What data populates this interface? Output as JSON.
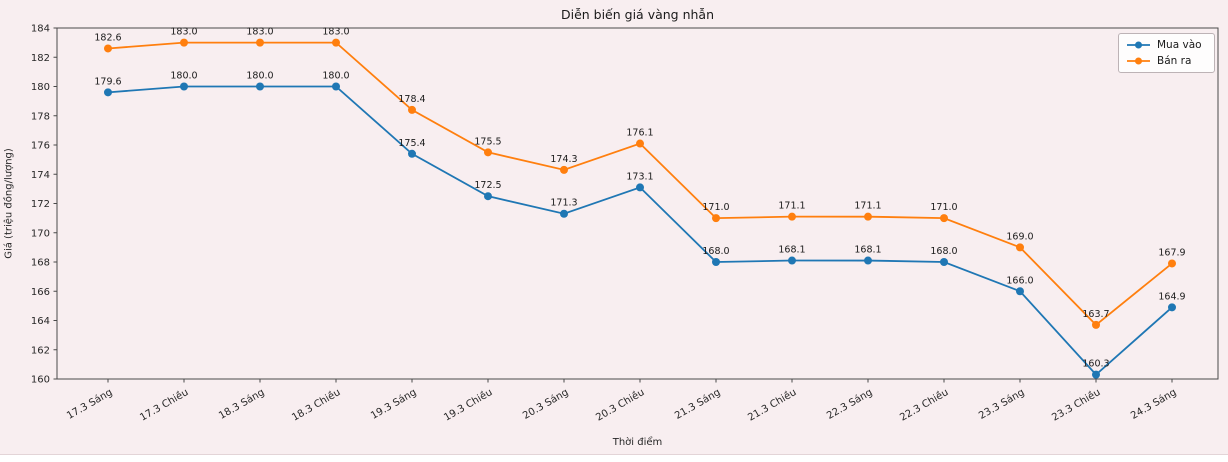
{
  "title": "Diễn biến giá vàng nhẫn",
  "colors": {
    "figure_background": "#f8eef0",
    "spine": "#4a4a4a",
    "tick_text": "#262626",
    "point_label_text": "#1c1c1c"
  },
  "legend": {
    "items": [
      {
        "label": "Mua vào"
      },
      {
        "label": "Bán ra"
      }
    ]
  },
  "chart_data": {
    "type": "line",
    "title": "Diễn biến giá vàng nhẫn",
    "xlabel": "Thời điểm",
    "ylabel": "Giá (triệu đồng/lượng)",
    "categories": [
      "17.3 Sáng",
      "17.3 Chiều",
      "18.3 Sáng",
      "18.3 Chiều",
      "19.3 Sáng",
      "19.3 Chiều",
      "20.3 Sáng",
      "20.3 Chiều",
      "21.3 Sáng",
      "21.3 Chiều",
      "22.3 Sáng",
      "22.3 Chiều",
      "23.3 Sáng",
      "23.3 Chiều",
      "24.3 Sáng"
    ],
    "series": [
      {
        "name": "Mua vào",
        "color": "#1f77b4",
        "values": [
          179.6,
          180.0,
          180.0,
          180.0,
          175.4,
          172.5,
          171.3,
          173.1,
          168.0,
          168.1,
          168.1,
          168.0,
          166.0,
          160.3,
          164.9
        ]
      },
      {
        "name": "Bán ra",
        "color": "#ff7f0e",
        "values": [
          182.6,
          183.0,
          183.0,
          183.0,
          178.4,
          175.5,
          174.3,
          176.1,
          171.0,
          171.1,
          171.1,
          171.0,
          169.0,
          163.7,
          167.9
        ]
      }
    ],
    "ylim": [
      160,
      184
    ],
    "ytick_step": 2,
    "grid": false,
    "legend_position": "upper right",
    "point_labels": true,
    "xtick_rotation": 30
  }
}
